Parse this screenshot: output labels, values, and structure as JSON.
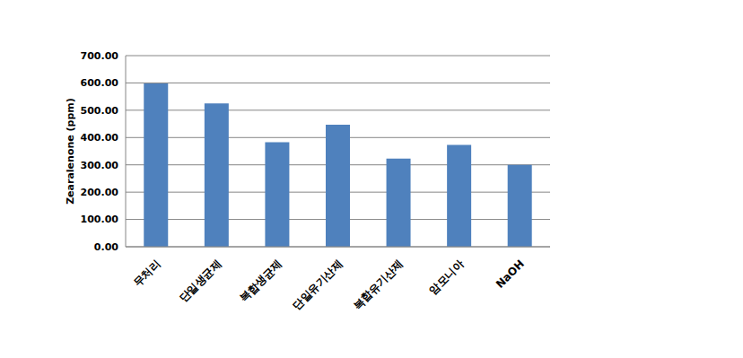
{
  "chart_data": {
    "type": "bar",
    "y_label": "Zearalenone (ppm)",
    "categories": [
      "무처리",
      "단일생균제",
      "복합생균제",
      "단일유기산제",
      "복합유기산제",
      "암모니아",
      "NaOH"
    ],
    "values": [
      598,
      525,
      383,
      447,
      323,
      373,
      300
    ],
    "color": "#4f81bd",
    "ylim": [
      0,
      700
    ],
    "yticks": [
      {
        "value": 0,
        "label": "0.00"
      },
      {
        "value": 100,
        "label": "100.00"
      },
      {
        "value": 200,
        "label": "200.00"
      },
      {
        "value": 300,
        "label": "300.00"
      },
      {
        "value": 400,
        "label": "400.00"
      },
      {
        "value": 500,
        "label": "500.00"
      },
      {
        "value": 600,
        "label": "600.00"
      },
      {
        "value": 700,
        "label": "700.00"
      }
    ],
    "grid": true
  }
}
